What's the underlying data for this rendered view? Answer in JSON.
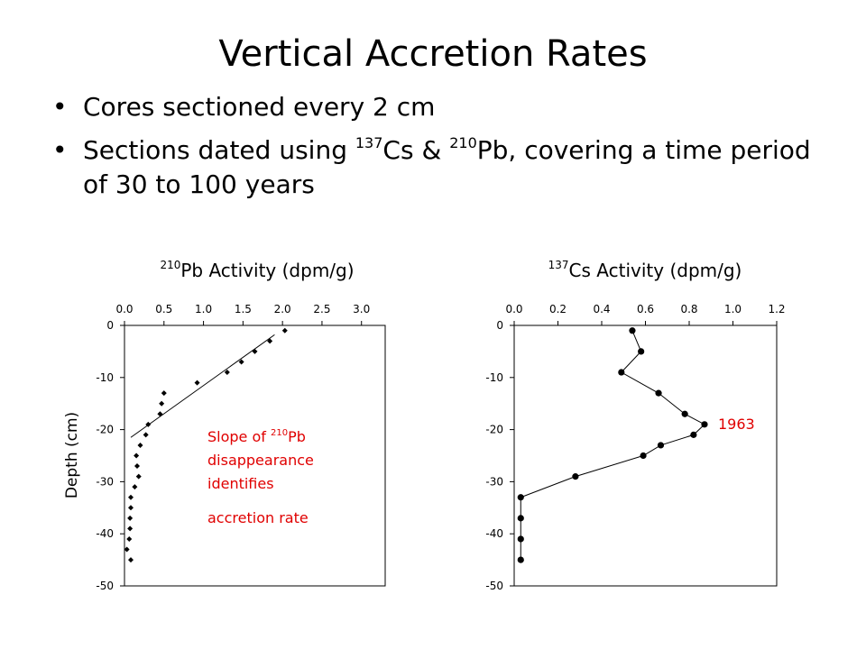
{
  "slide": {
    "title": "Vertical Accretion Rates",
    "bullet_symbol": "•",
    "bullet1": "Cores sectioned every 2 cm",
    "bullet2_part1": "Sections dated using ",
    "bullet2_sup1": "137",
    "bullet2_part2": "Cs & ",
    "bullet2_sup2": "210",
    "bullet2_part3": "Pb, covering a time period of 30 to 100 years"
  },
  "chart_data": [
    {
      "type": "scatter",
      "title_sup": "210",
      "title": "Pb Activity (dpm/g)",
      "ylabel": "Depth (cm)",
      "xlim": [
        0.0,
        3.3
      ],
      "ylim": [
        -50,
        0
      ],
      "xticks": [
        "0.0",
        "0.5",
        "1.0",
        "1.5",
        "2.0",
        "2.5",
        "3.0"
      ],
      "yticks": [
        "0",
        "-10",
        "-20",
        "-30",
        "-40",
        "-50"
      ],
      "points": [
        {
          "x": 2.03,
          "y": -1
        },
        {
          "x": 1.84,
          "y": -3
        },
        {
          "x": 1.65,
          "y": -5
        },
        {
          "x": 1.48,
          "y": -7
        },
        {
          "x": 1.3,
          "y": -9
        },
        {
          "x": 0.92,
          "y": -11
        },
        {
          "x": 0.5,
          "y": -13
        },
        {
          "x": 0.47,
          "y": -15
        },
        {
          "x": 0.45,
          "y": -17
        },
        {
          "x": 0.3,
          "y": -19
        },
        {
          "x": 0.27,
          "y": -21
        },
        {
          "x": 0.2,
          "y": -23
        },
        {
          "x": 0.15,
          "y": -25
        },
        {
          "x": 0.16,
          "y": -27
        },
        {
          "x": 0.18,
          "y": -29
        },
        {
          "x": 0.13,
          "y": -31
        },
        {
          "x": 0.08,
          "y": -33
        },
        {
          "x": 0.08,
          "y": -35
        },
        {
          "x": 0.07,
          "y": -37
        },
        {
          "x": 0.07,
          "y": -39
        },
        {
          "x": 0.06,
          "y": -41
        },
        {
          "x": 0.03,
          "y": -43
        },
        {
          "x": 0.08,
          "y": -45
        }
      ],
      "trendline": [
        {
          "x": 0.08,
          "y": -21.5
        },
        {
          "x": 1.9,
          "y": -1.8
        }
      ],
      "annotation": {
        "line1_part1": "Slope of ",
        "line1_sup": "210",
        "line1_part2": "Pb",
        "line2": "disappearance",
        "line3": "identifies",
        "line4": "accretion rate",
        "color": "#e00000"
      }
    },
    {
      "type": "line",
      "title_sup": "137",
      "title": "Cs Activity (dpm/g)",
      "xlim": [
        0.0,
        1.2
      ],
      "ylim": [
        -50,
        0
      ],
      "xticks": [
        "0.0",
        "0.2",
        "0.4",
        "0.6",
        "0.8",
        "1.0",
        "1.2"
      ],
      "yticks": [
        "0",
        "-10",
        "-20",
        "-30",
        "-40",
        "-50"
      ],
      "points": [
        {
          "x": 0.54,
          "y": -1
        },
        {
          "x": 0.58,
          "y": -5
        },
        {
          "x": 0.49,
          "y": -9
        },
        {
          "x": 0.66,
          "y": -13
        },
        {
          "x": 0.78,
          "y": -17
        },
        {
          "x": 0.87,
          "y": -19
        },
        {
          "x": 0.82,
          "y": -21
        },
        {
          "x": 0.67,
          "y": -23
        },
        {
          "x": 0.59,
          "y": -25
        },
        {
          "x": 0.28,
          "y": -29
        },
        {
          "x": 0.03,
          "y": -33
        },
        {
          "x": 0.03,
          "y": -37
        },
        {
          "x": 0.03,
          "y": -41
        },
        {
          "x": 0.03,
          "y": -45
        }
      ],
      "annotation": {
        "text": "1963",
        "color": "#e00000"
      }
    }
  ]
}
